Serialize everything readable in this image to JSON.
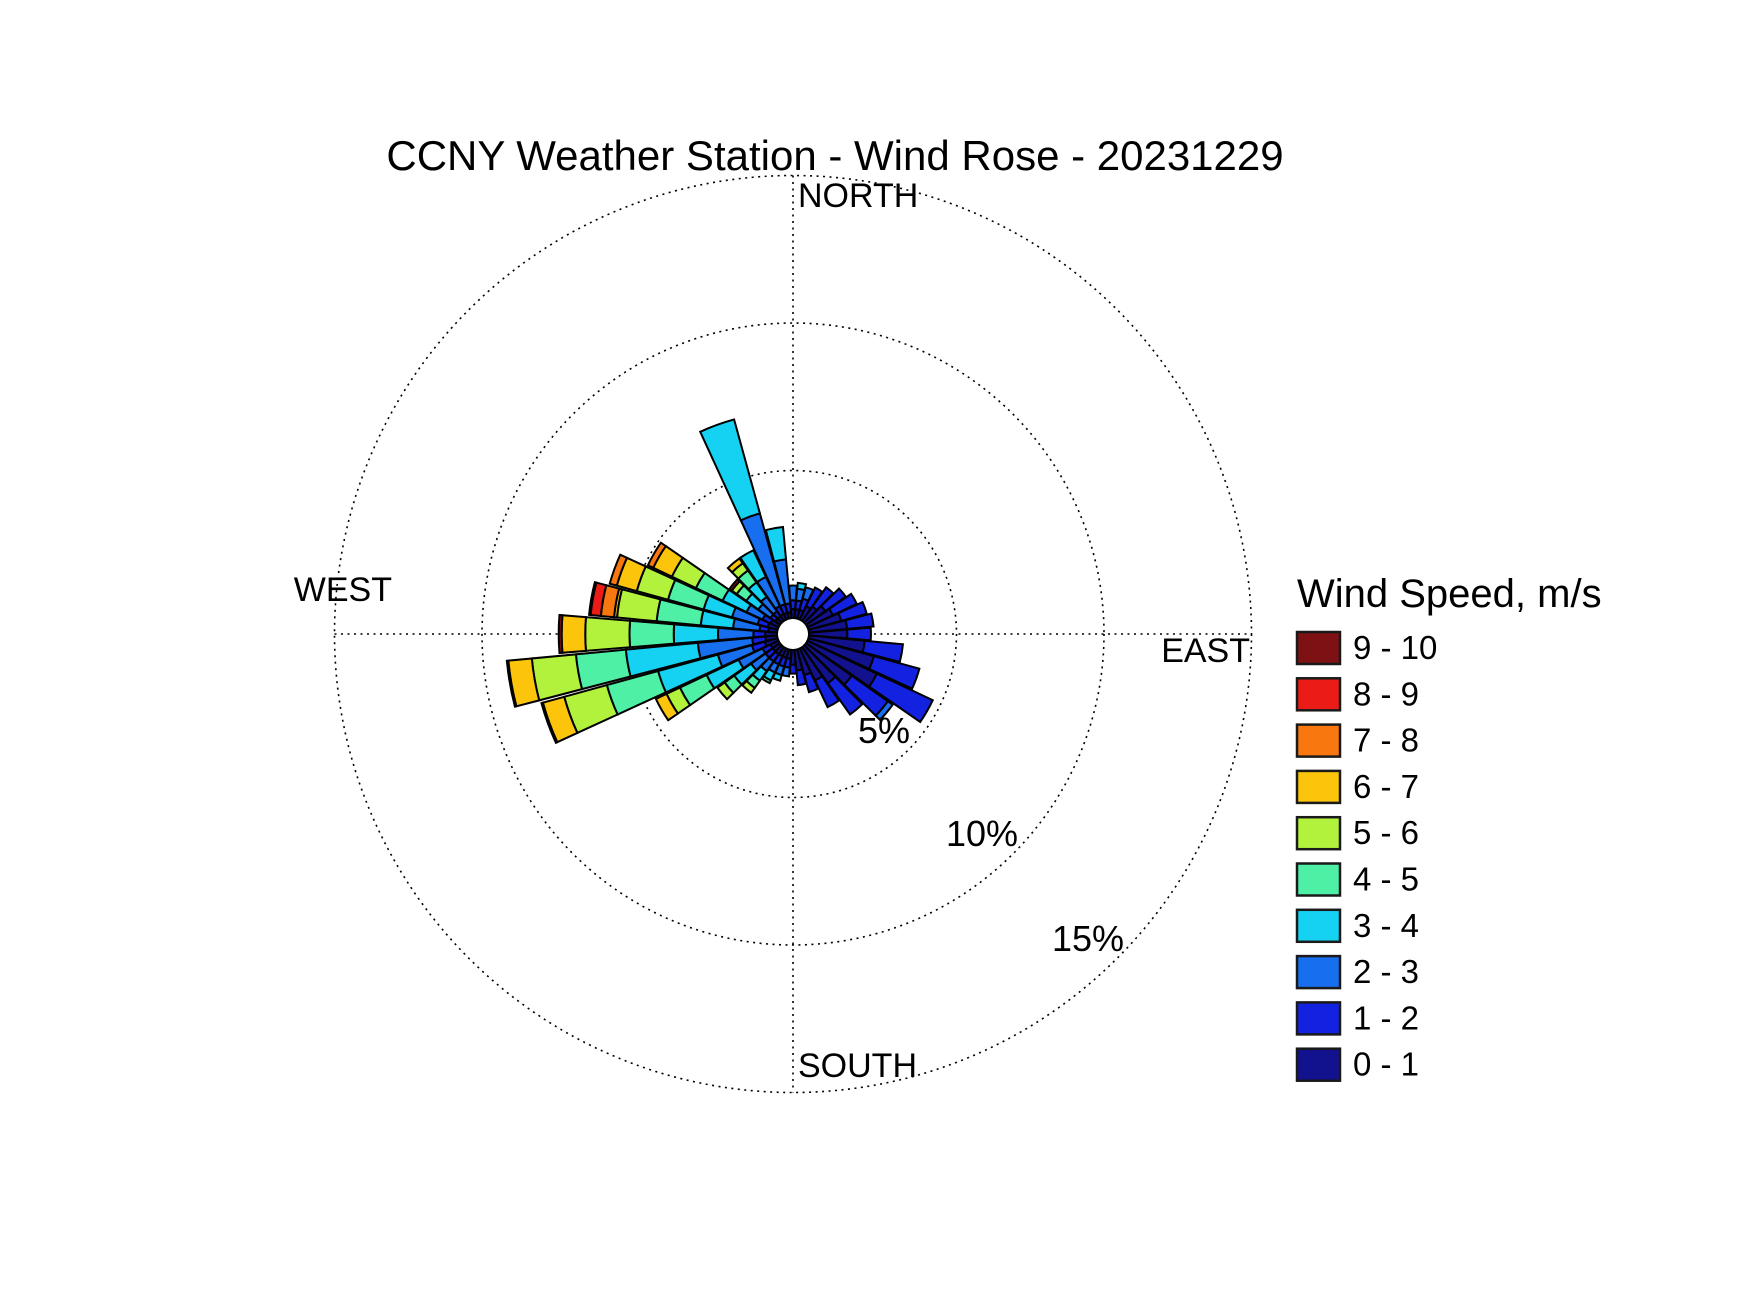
{
  "title": "CCNY Weather Station - Wind Rose - 20231229",
  "compass": {
    "north": "NORTH",
    "east": "EAST",
    "south": "SOUTH",
    "west": "WEST"
  },
  "ring_labels": {
    "r5": "5%",
    "r10": "10%",
    "r15": "15%"
  },
  "legend": {
    "title": "Wind Speed, m/s"
  },
  "chart_data": {
    "type": "wind_rose",
    "title": "CCNY Weather Station - Wind Rose - 20231229",
    "units": "m/s",
    "direction_convention": "meteorological compass bins, 10 degrees wide, petal length = frequency percent",
    "radial_axis": {
      "ticks_percent": [
        5,
        10,
        15
      ],
      "max_percent": 15.5,
      "grid": "dotted",
      "tick_label_angle_deg": 135
    },
    "speed_bins": [
      {
        "label": "0 - 1",
        "color": "#12128F"
      },
      {
        "label": "1 - 2",
        "color": "#1222E0"
      },
      {
        "label": "2 - 3",
        "color": "#176FF0"
      },
      {
        "label": "3 - 4",
        "color": "#16D2F2"
      },
      {
        "label": "4 - 5",
        "color": "#4DF0A5"
      },
      {
        "label": "5 - 6",
        "color": "#B2F23C"
      },
      {
        "label": "6 - 7",
        "color": "#FCC50C"
      },
      {
        "label": "7 - 8",
        "color": "#F8770F"
      },
      {
        "label": "8 - 9",
        "color": "#EB1C17"
      },
      {
        "label": "9 - 10",
        "color": "#7D1113"
      }
    ],
    "legend_order": "highest speed bin at top",
    "directions_deg": [
      0,
      10,
      20,
      30,
      40,
      50,
      60,
      70,
      80,
      90,
      100,
      110,
      120,
      130,
      140,
      150,
      160,
      170,
      180,
      190,
      200,
      210,
      220,
      230,
      240,
      250,
      260,
      270,
      280,
      290,
      300,
      310,
      320,
      330,
      340,
      350
    ],
    "frequency_percent": [
      [
        0.3,
        0.3,
        0.5,
        0,
        0,
        0,
        0,
        0,
        0,
        0
      ],
      [
        0.3,
        0.3,
        0.4,
        0.2,
        0,
        0,
        0,
        0,
        0,
        0
      ],
      [
        0.3,
        0.4,
        0.4,
        0,
        0,
        0,
        0,
        0,
        0,
        0
      ],
      [
        0.5,
        0.7,
        0,
        0,
        0,
        0,
        0,
        0,
        0,
        0
      ],
      [
        0.6,
        0.8,
        0,
        0,
        0,
        0,
        0,
        0,
        0,
        0
      ],
      [
        0.8,
        0.85,
        0,
        0,
        0,
        0,
        0,
        0,
        0,
        0
      ],
      [
        0.95,
        0.9,
        0,
        0,
        0,
        0,
        0,
        0,
        0,
        0
      ],
      [
        1.15,
        0.9,
        0,
        0,
        0,
        0,
        0,
        0,
        0,
        0
      ],
      [
        1.3,
        0.9,
        0,
        0,
        0,
        0,
        0,
        0,
        0,
        0
      ],
      [
        1.3,
        0.8,
        0,
        0,
        0,
        0,
        0,
        0,
        0,
        0
      ],
      [
        1.9,
        1.3,
        0,
        0,
        0,
        0,
        0,
        0,
        0,
        0
      ],
      [
        2.3,
        1.6,
        0,
        0,
        0,
        0,
        0,
        0,
        0,
        0
      ],
      [
        2.6,
        2.1,
        0,
        0,
        0,
        0,
        0,
        0,
        0,
        0
      ],
      [
        1.9,
        1.5,
        0.2,
        0,
        0,
        0,
        0,
        0,
        0,
        0
      ],
      [
        1.5,
        1.3,
        0,
        0,
        0,
        0,
        0,
        0,
        0,
        0
      ],
      [
        1.2,
        1.0,
        0,
        0,
        0,
        0,
        0,
        0,
        0,
        0
      ],
      [
        0.9,
        0.6,
        0,
        0,
        0,
        0,
        0,
        0,
        0,
        0
      ],
      [
        0.7,
        0.5,
        0,
        0,
        0,
        0,
        0,
        0,
        0,
        0
      ],
      [
        0.5,
        0.3,
        0,
        0,
        0,
        0,
        0,
        0,
        0,
        0
      ],
      [
        0.3,
        0.3,
        0.3,
        0,
        0,
        0,
        0,
        0,
        0,
        0
      ],
      [
        0.3,
        0.3,
        0.3,
        0.2,
        0,
        0,
        0,
        0,
        0,
        0
      ],
      [
        0.3,
        0.3,
        0.3,
        0.3,
        0.1,
        0,
        0,
        0,
        0,
        0
      ],
      [
        0.3,
        0.3,
        0.4,
        0.4,
        0.3,
        0.2,
        0,
        0,
        0,
        0
      ],
      [
        0.3,
        0.3,
        0.6,
        0.7,
        0.4,
        0.3,
        0,
        0,
        0,
        0
      ],
      [
        0.3,
        0.3,
        0.9,
        1.2,
        1.0,
        0.5,
        0.4,
        0,
        0,
        0
      ],
      [
        0.45,
        0.45,
        1.2,
        2.1,
        1.8,
        1.5,
        0.75,
        0,
        0,
        0.05
      ],
      [
        0.4,
        0.45,
        1.85,
        2.45,
        1.7,
        1.5,
        0.8,
        0,
        0,
        0.05
      ],
      [
        0.4,
        0.4,
        1.2,
        1.5,
        1.5,
        1.5,
        0.8,
        0,
        0,
        0.1
      ],
      [
        0.3,
        0.3,
        0.9,
        1.1,
        1.5,
        1.35,
        0.1,
        0.45,
        0.35,
        0.05
      ],
      [
        0.35,
        0.35,
        0.9,
        1.0,
        1.25,
        1.1,
        0.7,
        0.25,
        0,
        0
      ],
      [
        0.3,
        0.3,
        0.6,
        0.9,
        1.0,
        0.9,
        0.7,
        0.2,
        0,
        0
      ],
      [
        0.2,
        0.2,
        0.5,
        0.5,
        0.4,
        0.2,
        0,
        0,
        0,
        0.1
      ],
      [
        0.2,
        0.2,
        0.6,
        0.6,
        0.5,
        0.3,
        0.2,
        0,
        0,
        0
      ],
      [
        0.2,
        0.3,
        1.1,
        1.0,
        0,
        0,
        0,
        0,
        0,
        0
      ],
      [
        0.2,
        0.3,
        3.2,
        3.3,
        0,
        0,
        0,
        0,
        0,
        0
      ],
      [
        0.2,
        0.3,
        1.5,
        1.1,
        0,
        0,
        0,
        0,
        0,
        0
      ]
    ]
  }
}
